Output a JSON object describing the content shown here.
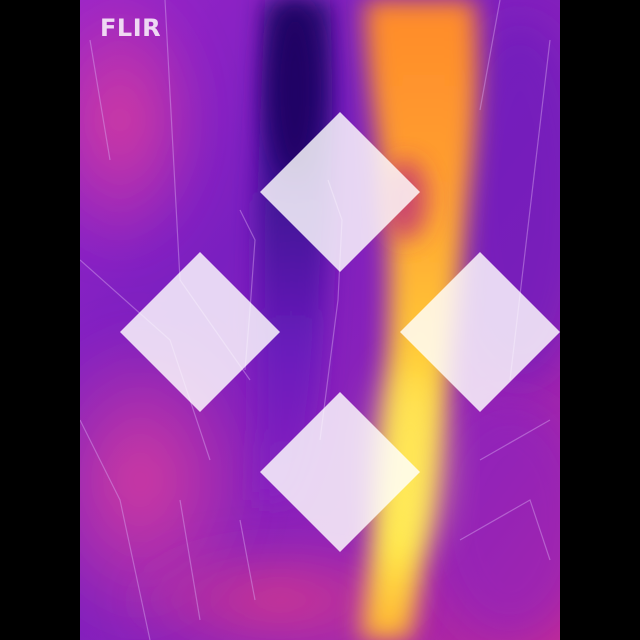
{
  "brand": {
    "logo_text": "FLIR",
    "logo_icon": "flir-diamond-logo-icon"
  },
  "palette": {
    "letterbox": "#000000",
    "cold": "#2a0a6e",
    "cool": "#5a1bb8",
    "base": "#8a1fc4",
    "warm": "#c02aa8",
    "hot": "#ff7a1a",
    "hottest": "#ffe23a"
  }
}
